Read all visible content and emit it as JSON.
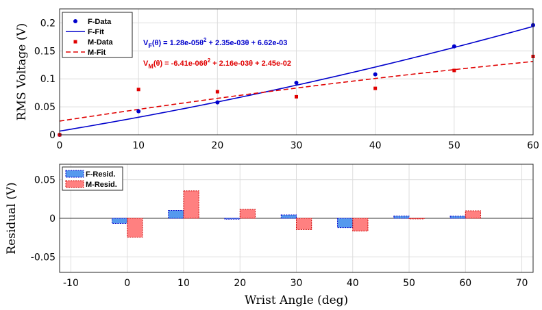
{
  "chart_data": [
    {
      "type": "scatter",
      "xlabel": "",
      "ylabel": "RMS Voltage (V)",
      "xlim": [
        0,
        60
      ],
      "ylim": [
        0,
        0.225
      ],
      "xticks": [
        0,
        10,
        20,
        30,
        40,
        50,
        60
      ],
      "yticks": [
        0,
        0.05,
        0.1,
        0.15,
        0.2
      ],
      "ytick_labels": [
        "0",
        "0.05",
        "0.1",
        "0.15",
        "0.2"
      ],
      "grid": true,
      "legend_position": "top-left",
      "series": [
        {
          "name": "F-Data",
          "style": "marker-circle",
          "color": "#0000cc",
          "x": [
            0,
            10,
            20,
            30,
            40,
            50,
            60
          ],
          "y": [
            0,
            0.042,
            0.058,
            0.093,
            0.108,
            0.158,
            0.196
          ]
        },
        {
          "name": "F-Fit",
          "style": "solid-line",
          "color": "#0000cc",
          "fit_coeffs": [
            1.28e-05,
            0.00235,
            0.00662
          ]
        },
        {
          "name": "M-Data",
          "style": "marker-square",
          "color": "#e00000",
          "x": [
            0,
            10,
            20,
            30,
            40,
            50,
            60
          ],
          "y": [
            0,
            0.081,
            0.077,
            0.068,
            0.083,
            0.115,
            0.14
          ]
        },
        {
          "name": "M-Fit",
          "style": "dashed-line",
          "color": "#e00000",
          "fit_coeffs": [
            -6.41e-06,
            0.00216,
            0.0245
          ]
        }
      ],
      "annotations": [
        {
          "text_parts": [
            "V",
            "F",
            "(θ) = 1.28e-05θ",
            "2",
            " + 2.35e-03θ + 6.62e-03"
          ],
          "color": "#0000cc"
        },
        {
          "text_parts": [
            "V",
            "M",
            "(θ) = -6.41e-06θ",
            "2",
            " + 2.16e-03θ + 2.45e-02"
          ],
          "color": "#e00000"
        }
      ]
    },
    {
      "type": "bar",
      "xlabel": "Wrist Angle (deg)",
      "ylabel": "Residual (V)",
      "xlim": [
        -12,
        72
      ],
      "ylim": [
        -0.07,
        0.07
      ],
      "xticks": [
        -10,
        0,
        10,
        20,
        30,
        40,
        50,
        60,
        70
      ],
      "yticks": [
        -0.05,
        0,
        0.05
      ],
      "ytick_labels": [
        "-0.05",
        "0",
        "0.05"
      ],
      "grid": true,
      "legend_position": "top-left",
      "categories": [
        0,
        10,
        20,
        30,
        40,
        50,
        60
      ],
      "series": [
        {
          "name": "F-Resid.",
          "color": "#5599ee",
          "edge": "#0000cc",
          "values": [
            -0.0066,
            0.0102,
            -0.0011,
            0.0044,
            -0.0121,
            0.0029,
            0.0028
          ]
        },
        {
          "name": "M-Resid.",
          "color": "#ff8080",
          "edge": "#cc0000",
          "values": [
            -0.0245,
            0.0356,
            0.0116,
            -0.0145,
            -0.0165,
            -0.0008,
            0.0097
          ]
        }
      ]
    }
  ]
}
